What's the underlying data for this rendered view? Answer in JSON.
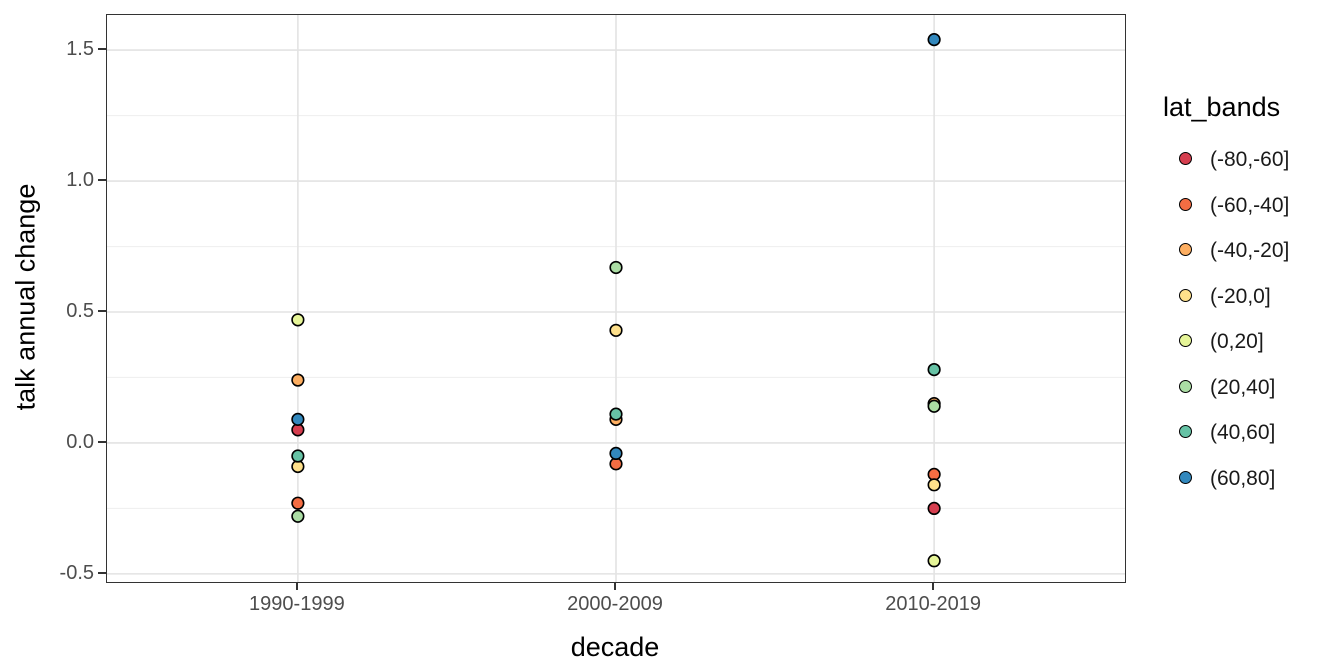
{
  "chart_data": {
    "type": "scatter",
    "title": "",
    "xlabel": "decade",
    "ylabel": "talk annual change",
    "legend_title": "lat_bands",
    "legend_position": "right",
    "categories": [
      "1990-1999",
      "2000-2009",
      "2010-2019"
    ],
    "y_ticks": [
      1.5,
      1.0,
      0.5,
      0.0,
      -0.5
    ],
    "y_minor_ticks": [
      1.25,
      0.75,
      0.25,
      -0.25
    ],
    "ylim": [
      -0.531,
      1.634
    ],
    "grid": "horizontal major+minor lines, vertical major line at each category",
    "series": [
      {
        "name": "(-80,-60]",
        "color": "#d53e4f",
        "points": [
          {
            "decade": "1990-1999",
            "y": 0.05
          },
          {
            "decade": "2010-2019",
            "y": -0.25
          }
        ]
      },
      {
        "name": "(-60,-40]",
        "color": "#f46d43",
        "points": [
          {
            "decade": "1990-1999",
            "y": -0.23
          },
          {
            "decade": "2000-2009",
            "y": -0.08
          },
          {
            "decade": "2010-2019",
            "y": -0.12
          }
        ]
      },
      {
        "name": "(-40,-20]",
        "color": "#fdae61",
        "points": [
          {
            "decade": "1990-1999",
            "y": 0.24
          },
          {
            "decade": "2000-2009",
            "y": 0.09
          },
          {
            "decade": "2010-2019",
            "y": 0.15
          }
        ]
      },
      {
        "name": "(-20,0]",
        "color": "#fee08b",
        "points": [
          {
            "decade": "1990-1999",
            "y": -0.09
          },
          {
            "decade": "2000-2009",
            "y": 0.43
          },
          {
            "decade": "2010-2019",
            "y": -0.16
          }
        ]
      },
      {
        "name": "(0,20]",
        "color": "#e6f598",
        "points": [
          {
            "decade": "1990-1999",
            "y": 0.47
          },
          {
            "decade": "2010-2019",
            "y": -0.45
          }
        ]
      },
      {
        "name": "(20,40]",
        "color": "#abdda4",
        "points": [
          {
            "decade": "1990-1999",
            "y": -0.28
          },
          {
            "decade": "2000-2009",
            "y": 0.67
          },
          {
            "decade": "2010-2019",
            "y": 0.14
          }
        ]
      },
      {
        "name": "(40,60]",
        "color": "#66c2a5",
        "points": [
          {
            "decade": "1990-1999",
            "y": -0.05
          },
          {
            "decade": "2000-2009",
            "y": 0.11
          },
          {
            "decade": "2010-2019",
            "y": 0.28
          }
        ]
      },
      {
        "name": "(60,80]",
        "color": "#3288bd",
        "points": [
          {
            "decade": "1990-1999",
            "y": 0.09
          },
          {
            "decade": "2000-2009",
            "y": -0.04
          },
          {
            "decade": "2010-2019",
            "y": 1.54
          }
        ]
      }
    ],
    "point_style": {
      "radius": 5.8,
      "stroke": "#000000",
      "stroke_width": 1.6
    }
  },
  "style_colors": {
    "panel_border": "#333333",
    "grid_major": "#e3e3e3",
    "grid_minor": "#f0f0f0",
    "tick_mark": "#333333",
    "tick_label": "#4d4d4d",
    "axis_title": "#000000",
    "legend_text": "#1a1a1a"
  }
}
